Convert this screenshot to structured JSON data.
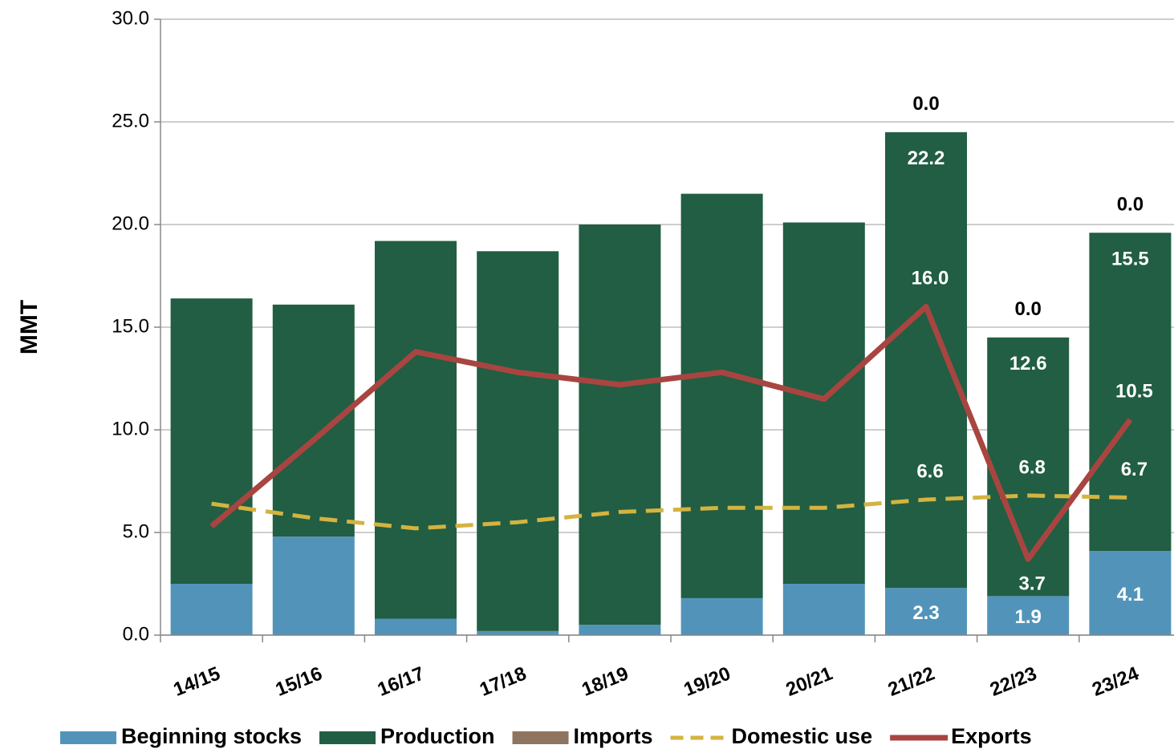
{
  "chart_data": {
    "type": "bar",
    "stacked": true,
    "y_label": "MMT",
    "categories": [
      "14/15",
      "15/16",
      "16/17",
      "17/18",
      "18/19",
      "19/20",
      "20/21",
      "21/22",
      "22/23",
      "23/24"
    ],
    "ylim": [
      0,
      30
    ],
    "yticks": [
      {
        "value": 0,
        "label": "0.0"
      },
      {
        "value": 5,
        "label": "5.0"
      },
      {
        "value": 10,
        "label": "10.0"
      },
      {
        "value": 15,
        "label": "15.0"
      },
      {
        "value": 20,
        "label": "20.0"
      },
      {
        "value": 25,
        "label": "25.0"
      },
      {
        "value": 30,
        "label": "30.0"
      }
    ],
    "grid": true,
    "legend": "bottom",
    "series": [
      {
        "name": "Beginning stocks",
        "type": "bar",
        "color": "#5294b9",
        "values": [
          2.5,
          4.8,
          0.8,
          0.2,
          0.5,
          1.8,
          2.5,
          2.3,
          1.9,
          4.1
        ],
        "value_labels": [
          null,
          null,
          null,
          null,
          null,
          null,
          null,
          "2.3",
          "1.9",
          "4.1"
        ]
      },
      {
        "name": "Production",
        "type": "bar",
        "color": "#215e43",
        "values": [
          13.9,
          11.3,
          18.4,
          18.5,
          19.5,
          19.7,
          17.6,
          22.2,
          12.6,
          15.5
        ],
        "value_labels": [
          null,
          null,
          null,
          null,
          null,
          null,
          null,
          "22.2",
          "12.6",
          "15.5"
        ]
      },
      {
        "name": "Imports",
        "type": "bar",
        "color": "#8f7560",
        "values": [
          0,
          0,
          0,
          0,
          0,
          0,
          0,
          0,
          0,
          0
        ],
        "value_labels": [
          null,
          null,
          null,
          null,
          null,
          null,
          null,
          "0.0",
          "0.0",
          "0.0"
        ]
      },
      {
        "name": "Domestic use",
        "type": "line",
        "dashed": true,
        "color": "#d4b33f",
        "values": [
          6.4,
          5.7,
          5.2,
          5.5,
          6.0,
          6.2,
          6.2,
          6.6,
          6.8,
          6.7
        ],
        "value_labels": [
          null,
          null,
          null,
          null,
          null,
          null,
          null,
          "6.6",
          "6.8",
          "6.7"
        ]
      },
      {
        "name": "Exports",
        "type": "line",
        "color": "#a84541",
        "values": [
          5.3,
          9.5,
          13.8,
          12.8,
          12.2,
          12.8,
          11.5,
          16.0,
          3.7,
          10.5
        ],
        "value_labels": [
          null,
          null,
          null,
          null,
          null,
          null,
          null,
          "16.0",
          "3.7",
          "10.5"
        ]
      }
    ]
  }
}
